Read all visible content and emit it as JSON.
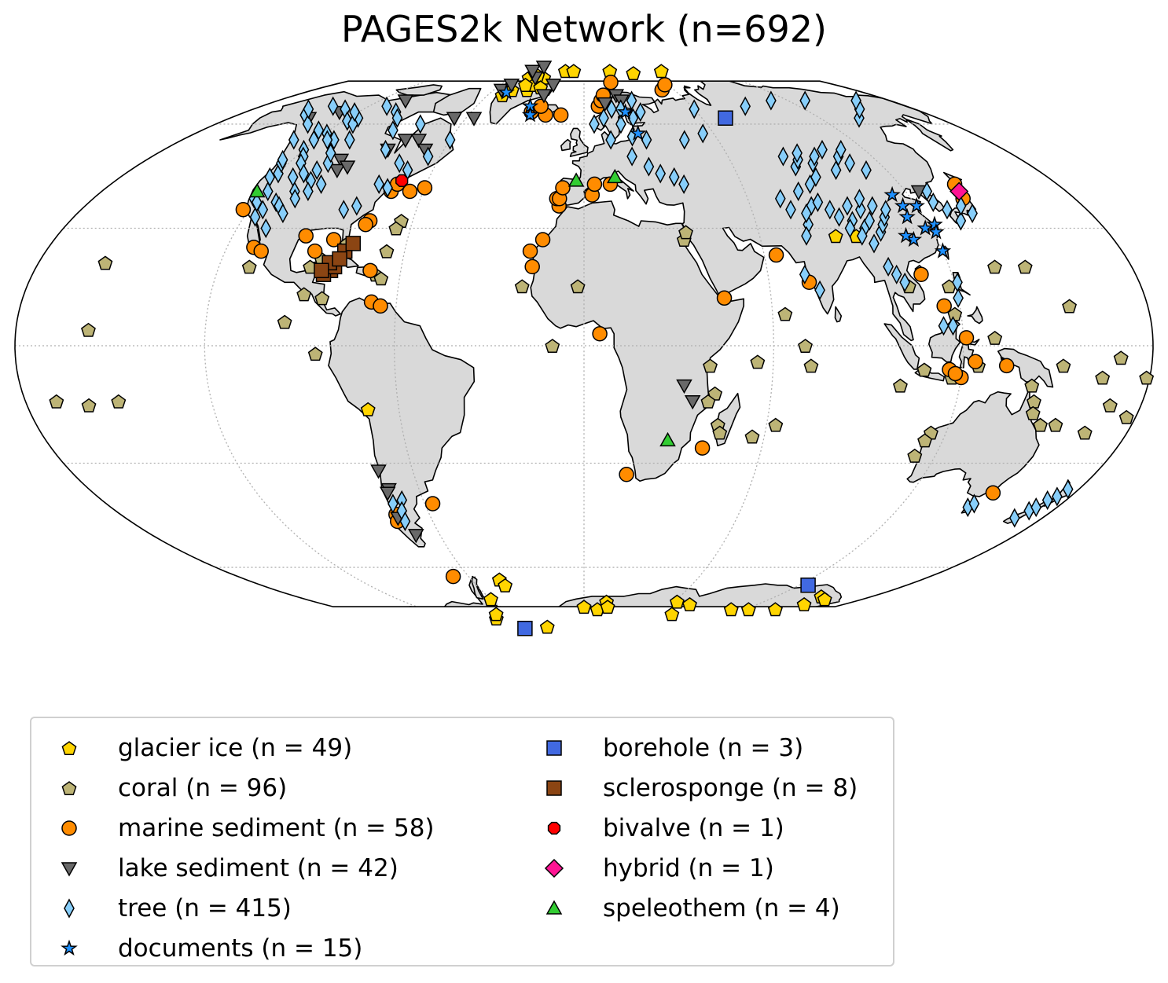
{
  "title": "PAGES2k Network (n=692)",
  "colors": {
    "land": "#d9d9d9",
    "ocean": "#ffffff",
    "coast": "#000000",
    "grid": "#b0b0b0"
  },
  "legend": {
    "columns": [
      [
        {
          "key": "glacier_ice",
          "label": "glacier ice (n = 49)",
          "marker": "pentagon",
          "color": "#ffd500"
        },
        {
          "key": "coral",
          "label": "coral (n = 96)",
          "marker": "pentagon",
          "color": "#bdb476"
        },
        {
          "key": "marine_sediment",
          "label": "marine sediment (n = 58)",
          "marker": "circle",
          "color": "#ff8c00"
        },
        {
          "key": "lake_sediment",
          "label": "lake sediment (n = 42)",
          "marker": "triangle-down",
          "color": "#696969"
        },
        {
          "key": "tree",
          "label": "tree (n = 415)",
          "marker": "diamond-thin",
          "color": "#87cefa"
        },
        {
          "key": "documents",
          "label": "documents (n = 15)",
          "marker": "star",
          "color": "#1e90ff"
        }
      ],
      [
        {
          "key": "borehole",
          "label": "borehole (n = 3)",
          "marker": "square",
          "color": "#4169e1"
        },
        {
          "key": "sclerosponge",
          "label": "sclerosponge (n = 8)",
          "marker": "square",
          "color": "#8b4513"
        },
        {
          "key": "bivalve",
          "label": "bivalve (n = 1)",
          "marker": "octagon",
          "color": "#ff0000"
        },
        {
          "key": "hybrid",
          "label": "hybrid (n = 1)",
          "marker": "diamond",
          "color": "#ff1493"
        },
        {
          "key": "speleothem",
          "label": "speleothem (n = 4)",
          "marker": "triangle-up",
          "color": "#32cd32"
        }
      ]
    ]
  },
  "sites": {
    "glacier_ice": [
      [
        -45,
        77
      ],
      [
        -38,
        72
      ],
      [
        -36,
        74
      ],
      [
        -42,
        74
      ],
      [
        -33,
        77
      ],
      [
        -40,
        78
      ],
      [
        -48,
        72
      ],
      [
        -51,
        70
      ],
      [
        -30,
        73
      ],
      [
        -18,
        80
      ],
      [
        -10,
        80
      ],
      [
        25,
        80
      ],
      [
        75,
        80
      ],
      [
        45,
        79
      ],
      [
        86,
        28
      ],
      [
        93,
        28
      ],
      [
        -70,
        -16
      ],
      [
        -45,
        -64
      ],
      [
        -44,
        -66
      ],
      [
        -60,
        -71
      ],
      [
        -80,
        -79
      ],
      [
        -72,
        -77
      ],
      [
        0,
        -74
      ],
      [
        15,
        -72
      ],
      [
        10,
        -75
      ],
      [
        17,
        -74
      ],
      [
        62,
        -72
      ],
      [
        73,
        -73
      ],
      [
        72,
        -77
      ],
      [
        110,
        -75
      ],
      [
        123,
        -75
      ],
      [
        143,
        -75
      ],
      [
        148,
        -70
      ],
      [
        152,
        -73
      ],
      [
        155,
        -71
      ],
      [
        -45,
        -83
      ]
    ],
    "coral": [
      [
        -158,
        21
      ],
      [
        -157,
        4
      ],
      [
        -170,
        -14
      ],
      [
        -150,
        -14
      ],
      [
        -160,
        -15
      ],
      [
        -110,
        20
      ],
      [
        -90,
        13
      ],
      [
        -85,
        -2
      ],
      [
        -68,
        18
      ],
      [
        -66,
        24
      ],
      [
        -66,
        17
      ],
      [
        -64,
        32
      ],
      [
        -65,
        30
      ],
      [
        -80,
        26
      ],
      [
        -84,
        12
      ],
      [
        -90,
        20
      ],
      [
        -87,
        22
      ],
      [
        -95,
        6
      ],
      [
        34,
        27
      ],
      [
        35,
        29
      ],
      [
        40,
        -5
      ],
      [
        55,
        -4
      ],
      [
        42,
        -12
      ],
      [
        40,
        -14
      ],
      [
        44,
        -20
      ],
      [
        45,
        -22
      ],
      [
        56,
        -23
      ],
      [
        64,
        8
      ],
      [
        72,
        -5
      ],
      [
        63,
        -20
      ],
      [
        101,
        -10
      ],
      [
        105,
        15
      ],
      [
        118,
        15
      ],
      [
        130,
        2
      ],
      [
        118,
        8
      ],
      [
        135,
        20
      ],
      [
        145,
        20
      ],
      [
        155,
        10
      ],
      [
        152,
        -5
      ],
      [
        165,
        -8
      ],
      [
        145,
        -14
      ],
      [
        150,
        -20
      ],
      [
        146,
        -17
      ],
      [
        115,
        -22
      ],
      [
        113,
        -28
      ],
      [
        114,
        -24
      ],
      [
        155,
        -20
      ],
      [
        166,
        -22
      ],
      [
        170,
        -15
      ],
      [
        177,
        -18
      ],
      [
        179,
        -8
      ],
      [
        125,
        -5
      ],
      [
        117,
        -8
      ],
      [
        108,
        -6
      ],
      [
        -2,
        15
      ],
      [
        -20,
        15
      ],
      [
        143,
        -10
      ],
      [
        170,
        -3
      ],
      [
        -10,
        0
      ],
      [
        70,
        0
      ]
    ],
    "marine_sediment": [
      [
        -122,
        35
      ],
      [
        -111,
        25
      ],
      [
        -108,
        24
      ],
      [
        -95,
        28
      ],
      [
        -90,
        24
      ],
      [
        -85,
        27
      ],
      [
        -75,
        32
      ],
      [
        -76,
        31
      ],
      [
        -72,
        40
      ],
      [
        -71,
        42
      ],
      [
        -60,
        41
      ],
      [
        -65,
        40
      ],
      [
        -70,
        19
      ],
      [
        -68,
        11
      ],
      [
        -65,
        10
      ],
      [
        -57,
        -41
      ],
      [
        -73,
        -44
      ],
      [
        -74,
        -46
      ],
      [
        -68,
        -63
      ],
      [
        -14,
        27
      ],
      [
        -18,
        24
      ],
      [
        -17,
        20
      ],
      [
        -9,
        36
      ],
      [
        -10,
        38
      ],
      [
        -9,
        38
      ],
      [
        -8,
        41
      ],
      [
        3,
        39
      ],
      [
        4,
        42
      ],
      [
        10,
        42
      ],
      [
        -28,
        64
      ],
      [
        -20,
        63
      ],
      [
        -24,
        66
      ],
      [
        -12,
        63
      ],
      [
        8,
        66
      ],
      [
        10,
        68
      ],
      [
        12,
        70
      ],
      [
        20,
        75
      ],
      [
        45,
        12
      ],
      [
        64,
        23
      ],
      [
        73,
        16
      ],
      [
        5,
        3
      ],
      [
        15,
        -33
      ],
      [
        110,
        18
      ],
      [
        115,
        10
      ],
      [
        121,
        2
      ],
      [
        116,
        -6
      ],
      [
        120,
        -8
      ],
      [
        118,
        -7
      ],
      [
        124,
        -4
      ],
      [
        134,
        -5
      ],
      [
        139,
        38
      ],
      [
        141,
        42
      ],
      [
        150,
        -38
      ],
      [
        52,
        72
      ],
      [
        58,
        74
      ],
      [
        40,
        -26
      ]
    ],
    "lake_sediment": [
      [
        -105,
        68
      ],
      [
        -140,
        62
      ],
      [
        -130,
        64
      ],
      [
        -100,
        49
      ],
      [
        -98,
        46
      ],
      [
        -95,
        47
      ],
      [
        -84,
        52
      ],
      [
        -80,
        55
      ],
      [
        -74,
        55
      ],
      [
        -68,
        52
      ],
      [
        -66,
        62
      ],
      [
        -56,
        62
      ],
      [
        -55,
        72
      ],
      [
        -52,
        74
      ],
      [
        -40,
        77
      ],
      [
        -45,
        82
      ],
      [
        -50,
        80
      ],
      [
        -25,
        70
      ],
      [
        -22,
        74
      ],
      [
        12,
        67
      ],
      [
        20,
        70
      ],
      [
        22,
        68
      ],
      [
        32,
        -10
      ],
      [
        35,
        -14
      ],
      [
        125,
        40
      ],
      [
        -72,
        -32
      ],
      [
        -73,
        -45
      ],
      [
        -70,
        -50
      ],
      [
        -71,
        -37
      ],
      [
        -72,
        -38
      ]
    ],
    "tree": [
      [
        -145,
        63
      ],
      [
        -130,
        65
      ],
      [
        -125,
        58
      ],
      [
        -120,
        52
      ],
      [
        -117,
        50
      ],
      [
        -115,
        48
      ],
      [
        -110,
        45
      ],
      [
        -108,
        40
      ],
      [
        -112,
        37
      ],
      [
        -120,
        45
      ],
      [
        -118,
        40
      ],
      [
        -115,
        35
      ],
      [
        -110,
        36
      ],
      [
        -106,
        38
      ],
      [
        -105,
        43
      ],
      [
        -104,
        48
      ],
      [
        -103,
        40
      ],
      [
        -100,
        42
      ],
      [
        -123,
        48
      ],
      [
        -122,
        44
      ],
      [
        -121,
        38
      ],
      [
        -119,
        37
      ],
      [
        -116,
        33
      ],
      [
        -107,
        34
      ],
      [
        -110,
        30
      ],
      [
        -135,
        60
      ],
      [
        -150,
        65
      ],
      [
        -140,
        66
      ],
      [
        -115,
        62
      ],
      [
        -110,
        66
      ],
      [
        -100,
        64
      ],
      [
        -95,
        62
      ],
      [
        -90,
        58
      ],
      [
        -85,
        52
      ],
      [
        -75,
        48
      ],
      [
        -70,
        46
      ],
      [
        -65,
        50
      ],
      [
        -60,
        55
      ],
      [
        -80,
        60
      ],
      [
        -78,
        42
      ],
      [
        -82,
        36
      ],
      [
        -86,
        35
      ],
      [
        -74,
        41
      ],
      [
        -121,
        55
      ],
      [
        -124,
        49
      ],
      [
        -112,
        55
      ],
      [
        -130,
        55
      ],
      [
        -107,
        51
      ],
      [
        -105,
        55
      ],
      [
        -118,
        61
      ],
      [
        -113,
        60
      ],
      [
        -119,
        57
      ],
      [
        5,
        60
      ],
      [
        10,
        62
      ],
      [
        15,
        65
      ],
      [
        20,
        65
      ],
      [
        25,
        62
      ],
      [
        28,
        68
      ],
      [
        30,
        64
      ],
      [
        18,
        60
      ],
      [
        12,
        55
      ],
      [
        20,
        50
      ],
      [
        22,
        56
      ],
      [
        28,
        55
      ],
      [
        26,
        47
      ],
      [
        35,
        44
      ],
      [
        38,
        42
      ],
      [
        30,
        45
      ],
      [
        83,
        50
      ],
      [
        85,
        47
      ],
      [
        88,
        49
      ],
      [
        90,
        51
      ],
      [
        93,
        48
      ],
      [
        96,
        50
      ],
      [
        100,
        46
      ],
      [
        102,
        52
      ],
      [
        106,
        50
      ],
      [
        108,
        48
      ],
      [
        110,
        52
      ],
      [
        112,
        46
      ],
      [
        90,
        44
      ],
      [
        86,
        42
      ],
      [
        80,
        40
      ],
      [
        82,
        36
      ],
      [
        85,
        37
      ],
      [
        88,
        35
      ],
      [
        90,
        33
      ],
      [
        94,
        32
      ],
      [
        97,
        30
      ],
      [
        100,
        32
      ],
      [
        102,
        29
      ],
      [
        104,
        31
      ],
      [
        99,
        35
      ],
      [
        95,
        36
      ],
      [
        101,
        38
      ],
      [
        104,
        36
      ],
      [
        106,
        33
      ],
      [
        108,
        35
      ],
      [
        92,
        30
      ],
      [
        95,
        28
      ],
      [
        98,
        26
      ],
      [
        100,
        20
      ],
      [
        102,
        18
      ],
      [
        104,
        16
      ],
      [
        78,
        31
      ],
      [
        76,
        28
      ],
      [
        74,
        35
      ],
      [
        72,
        38
      ],
      [
        79,
        34
      ],
      [
        127,
        37
      ],
      [
        130,
        35
      ],
      [
        132,
        32
      ],
      [
        136,
        36
      ],
      [
        138,
        34
      ],
      [
        128,
        40
      ],
      [
        72,
        18
      ],
      [
        76,
        14
      ],
      [
        -68,
        -40
      ],
      [
        -70,
        -43
      ],
      [
        -72,
        -41
      ],
      [
        -71,
        -46
      ],
      [
        146,
        -42
      ],
      [
        147,
        -41
      ],
      [
        171,
        -43
      ],
      [
        172,
        -42
      ],
      [
        173,
        -40
      ],
      [
        175,
        -39
      ],
      [
        169,
        -45
      ],
      [
        176,
        -37
      ],
      [
        60,
        65
      ],
      [
        90,
        66
      ],
      [
        110,
        68
      ],
      [
        130,
        68
      ],
      [
        140,
        62
      ],
      [
        150,
        65
      ],
      [
        55,
        57
      ],
      [
        160,
        68
      ],
      [
        45,
        55
      ],
      [
        114,
        5
      ],
      [
        117,
        5
      ],
      [
        120,
        12
      ],
      [
        121,
        16
      ],
      [
        -122,
        64
      ],
      [
        -115,
        55
      ],
      [
        -113,
        44
      ],
      [
        -106,
        46
      ]
    ],
    "documents": [
      [
        -50,
        71
      ],
      [
        -30,
        66
      ],
      [
        -28,
        63
      ],
      [
        22,
        64
      ],
      [
        25,
        57
      ],
      [
        120,
        24
      ],
      [
        118,
        30
      ],
      [
        122,
        31
      ],
      [
        115,
        36
      ],
      [
        114,
        33
      ],
      [
        114,
        39
      ],
      [
        120,
        36
      ],
      [
        112,
        27
      ],
      [
        110,
        28
      ],
      [
        121,
        29
      ]
    ],
    "borehole": [
      [
        72,
        62
      ],
      [
        -80,
        -84
      ],
      [
        125,
        -66
      ]
    ],
    "sclerosponge": [
      [
        -80,
        24
      ],
      [
        -78,
        26
      ],
      [
        -83,
        19
      ],
      [
        -85,
        18
      ],
      [
        -82,
        20
      ],
      [
        -84,
        21
      ],
      [
        -86,
        19
      ],
      [
        -81,
        22
      ]
    ],
    "bivalve": [
      [
        -70,
        43
      ]
    ],
    "hybrid": [
      [
        140,
        40
      ]
    ],
    "speleothem": [
      [
        -122,
        40
      ],
      [
        12,
        44
      ],
      [
        -3,
        43
      ],
      [
        28,
        -24
      ]
    ]
  },
  "chart_data": {
    "type": "scatter",
    "title": "PAGES2k Network (n=692)",
    "xlabel": "",
    "ylabel": "",
    "series": [
      {
        "name": "glacier ice (n = 49)",
        "n": 49
      },
      {
        "name": "coral (n = 96)",
        "n": 96
      },
      {
        "name": "marine sediment (n = 58)",
        "n": 58
      },
      {
        "name": "lake sediment (n = 42)",
        "n": 42
      },
      {
        "name": "tree (n = 415)",
        "n": 415
      },
      {
        "name": "documents (n = 15)",
        "n": 15
      },
      {
        "name": "borehole (n = 3)",
        "n": 3
      },
      {
        "name": "sclerosponge (n = 8)",
        "n": 8
      },
      {
        "name": "bivalve (n = 1)",
        "n": 1
      },
      {
        "name": "hybrid (n = 1)",
        "n": 1
      },
      {
        "name": "speleothem (n = 4)",
        "n": 4
      }
    ]
  }
}
